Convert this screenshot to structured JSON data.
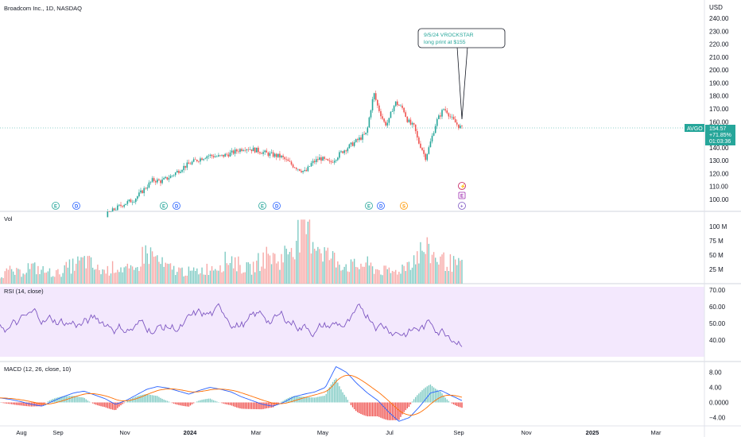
{
  "header": {
    "symbol_title": "Broadcom Inc., 1D, NASDAQ",
    "currency": "USD"
  },
  "colors": {
    "up": "#26a69a",
    "down": "#ef5350",
    "macd": "#2962ff",
    "signal": "#ff6d00",
    "rsi": "#7e57c2",
    "rsi_band": "#f3e8fd",
    "hist_up": "#26a69a",
    "hist_down": "#ef5350"
  },
  "price_axis": {
    "ticks": [
      "240.00",
      "230.00",
      "220.00",
      "210.00",
      "200.00",
      "190.00",
      "180.00",
      "170.00",
      "160.00",
      "150.00",
      "140.00",
      "130.00",
      "120.00",
      "110.00",
      "100.00"
    ]
  },
  "last_price": {
    "ticker": "AVGO",
    "price": "154.57",
    "change": "+71.85%",
    "countdown": "01:03:36"
  },
  "annotation": {
    "line1": "9/5/24 VROCKSTAR",
    "line2": "long print at $155"
  },
  "volume_pane": {
    "title": "Vol",
    "ticks": [
      "100 M",
      "75 M",
      "50 M",
      "25 M"
    ]
  },
  "rsi_pane": {
    "title": "RSI (14, close)",
    "ticks": [
      "70.00",
      "60.00",
      "50.00",
      "40.00"
    ]
  },
  "macd_pane": {
    "title": "MACD (12, 26, close, 10)",
    "ticks": [
      "8.00",
      "4.00",
      "0.0000",
      "−4.00"
    ]
  },
  "time_axis": {
    "labels": [
      "Aug",
      "Sep",
      "Nov",
      "2024",
      "Mar",
      "May",
      "Jul",
      "Sep",
      "Nov",
      "2025",
      "Mar"
    ]
  },
  "events": [
    {
      "type": "E",
      "icon": "earnings-icon"
    },
    {
      "type": "D",
      "icon": "dividend-icon"
    },
    {
      "type": "E",
      "icon": "earnings-icon"
    },
    {
      "type": "D",
      "icon": "dividend-icon"
    },
    {
      "type": "E",
      "icon": "earnings-icon"
    },
    {
      "type": "D",
      "icon": "dividend-icon"
    },
    {
      "type": "E",
      "icon": "earnings-icon"
    },
    {
      "type": "D",
      "icon": "dividend-icon"
    },
    {
      "type": "S",
      "icon": "split-icon"
    },
    {
      "type": "E",
      "icon": "earnings-icon"
    },
    {
      "type": "⚡",
      "icon": "lightning-icon"
    },
    {
      "type": "+",
      "icon": "plus-icon"
    }
  ],
  "chart_data": {
    "type": "line",
    "title": "Broadcom Inc., 1D, NASDAQ",
    "price_ylim": [
      95,
      245
    ],
    "price_path": [
      [
        0,
        86
      ],
      [
        10,
        84
      ],
      [
        20,
        80
      ],
      [
        30,
        78
      ],
      [
        40,
        79
      ],
      [
        50,
        81
      ],
      [
        60,
        82
      ],
      [
        70,
        85
      ],
      [
        80,
        84
      ],
      [
        90,
        90
      ],
      [
        100,
        96
      ],
      [
        110,
        100
      ],
      [
        118,
        108
      ],
      [
        125,
        115
      ],
      [
        132,
        114
      ],
      [
        140,
        118
      ],
      [
        150,
        125
      ],
      [
        160,
        130
      ],
      [
        170,
        134
      ],
      [
        180,
        133
      ],
      [
        190,
        136
      ],
      [
        200,
        140
      ],
      [
        210,
        138
      ],
      [
        220,
        135
      ],
      [
        230,
        133
      ],
      [
        240,
        126
      ],
      [
        250,
        121
      ],
      [
        255,
        128
      ],
      [
        262,
        132
      ],
      [
        270,
        128
      ],
      [
        280,
        137
      ],
      [
        290,
        144
      ],
      [
        300,
        151
      ],
      [
        303,
        168
      ],
      [
        306,
        182
      ],
      [
        309,
        172
      ],
      [
        312,
        165
      ],
      [
        315,
        158
      ],
      [
        318,
        160
      ],
      [
        321,
        170
      ],
      [
        324,
        175
      ],
      [
        327,
        172
      ],
      [
        330,
        170
      ],
      [
        333,
        162
      ],
      [
        336,
        158
      ],
      [
        339,
        156
      ],
      [
        342,
        145
      ],
      [
        345,
        140
      ],
      [
        348,
        132
      ],
      [
        351,
        140
      ],
      [
        354,
        150
      ],
      [
        357,
        160
      ],
      [
        360,
        165
      ],
      [
        363,
        170
      ],
      [
        366,
        168
      ],
      [
        369,
        163
      ],
      [
        372,
        160
      ],
      [
        375,
        157
      ],
      [
        378,
        155
      ]
    ],
    "volume_ylim": [
      0,
      120
    ],
    "volume_approx": [
      15,
      22,
      18,
      30,
      25,
      20,
      18,
      28,
      35,
      40,
      25,
      22,
      30,
      26,
      20,
      55,
      48,
      30,
      25,
      22,
      20,
      24,
      28,
      35,
      45,
      30,
      25,
      40,
      50,
      38,
      60,
      85,
      95,
      70,
      50,
      40,
      32,
      30,
      35,
      25,
      22,
      20,
      30,
      45,
      60,
      50,
      40,
      35,
      30
    ],
    "rsi_ylim": [
      30,
      72
    ],
    "rsi_levels": [
      70,
      50,
      40
    ],
    "macd_ylim": [
      -6,
      10
    ],
    "macd_approx": [
      1.2,
      0.8,
      0.2,
      -0.5,
      -1.0,
      0.3,
      1.5,
      2.5,
      3.0,
      2.0,
      1.0,
      -0.5,
      0.5,
      2.0,
      3.5,
      4.2,
      3.8,
      3.0,
      2.2,
      3.2,
      4.0,
      3.5,
      2.8,
      1.5,
      0.5,
      -0.5,
      -1.0,
      0.0,
      1.5,
      2.2,
      2.8,
      4.0,
      9.5,
      8.0,
      5.0,
      2.5,
      0.5,
      -2.5,
      -5.0,
      -4.0,
      -1.0,
      2.5,
      3.2,
      1.8,
      0.5
    ],
    "x_labels": [
      "Aug",
      "Sep",
      "Nov",
      "2024",
      "Mar",
      "May",
      "Jul",
      "Sep",
      "Nov",
      "2025",
      "Mar"
    ]
  }
}
